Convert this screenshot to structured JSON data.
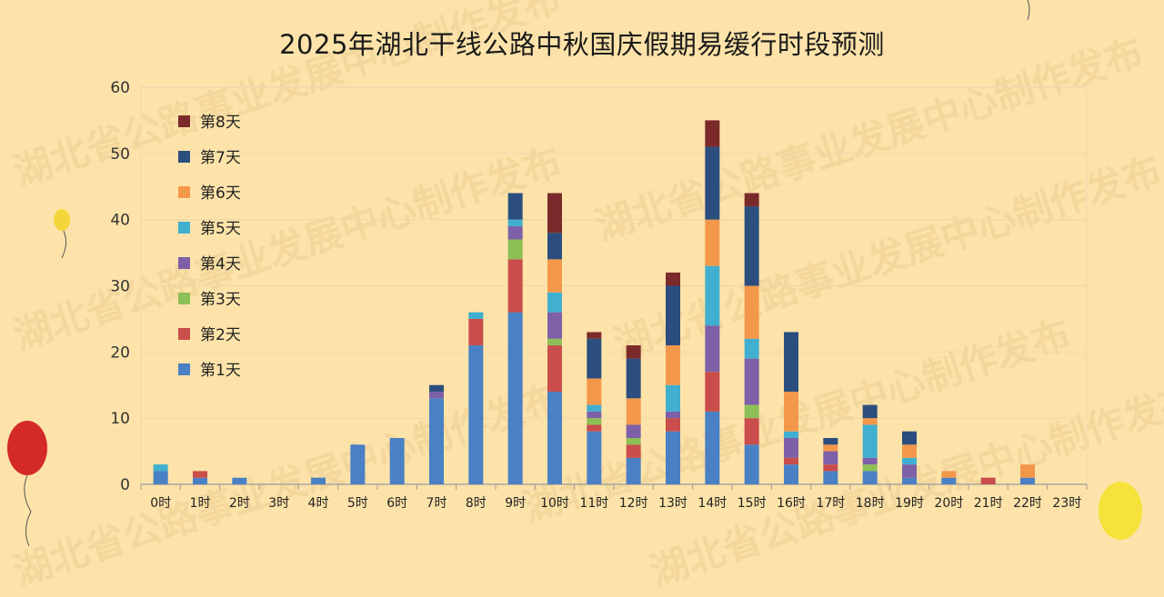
{
  "chart_data": {
    "type": "bar",
    "stacked": true,
    "title": "2025年湖北干线公路中秋国庆假期易缓行时段预测",
    "xlabel": "",
    "ylabel": "",
    "ylim": [
      0,
      60
    ],
    "yticks": [
      0,
      10,
      20,
      30,
      40,
      50,
      60
    ],
    "grid": true,
    "legend_position": "top-left",
    "categories": [
      "0时",
      "1时",
      "2时",
      "3时",
      "4时",
      "5时",
      "6时",
      "7时",
      "8时",
      "9时",
      "10时",
      "11时",
      "12时",
      "13时",
      "14时",
      "15时",
      "16时",
      "17时",
      "18时",
      "19时",
      "20时",
      "21时",
      "22时",
      "23时"
    ],
    "series": [
      {
        "name": "第1天",
        "color": "#4a80c4",
        "values": [
          2,
          1,
          1,
          0,
          1,
          6,
          7,
          13,
          21,
          26,
          14,
          8,
          4,
          8,
          11,
          6,
          3,
          2,
          2,
          1,
          1,
          0,
          1,
          0
        ]
      },
      {
        "name": "第2天",
        "color": "#c94d4b",
        "values": [
          0,
          1,
          0,
          0,
          0,
          0,
          0,
          0,
          4,
          8,
          7,
          1,
          2,
          2,
          6,
          4,
          1,
          1,
          0,
          0,
          0,
          1,
          0,
          0
        ]
      },
      {
        "name": "第3天",
        "color": "#8cbf56",
        "values": [
          0,
          0,
          0,
          0,
          0,
          0,
          0,
          0,
          0,
          3,
          1,
          1,
          1,
          0,
          0,
          2,
          0,
          0,
          1,
          0,
          0,
          0,
          0,
          0
        ]
      },
      {
        "name": "第4天",
        "color": "#7d60a8",
        "values": [
          0,
          0,
          0,
          0,
          0,
          0,
          0,
          1,
          0,
          2,
          4,
          1,
          2,
          1,
          7,
          7,
          3,
          2,
          1,
          2,
          0,
          0,
          0,
          0
        ]
      },
      {
        "name": "第5天",
        "color": "#40afd0",
        "values": [
          1,
          0,
          0,
          0,
          0,
          0,
          0,
          0,
          1,
          1,
          3,
          1,
          0,
          4,
          9,
          3,
          1,
          0,
          5,
          1,
          0,
          0,
          0,
          0
        ]
      },
      {
        "name": "第6天",
        "color": "#f3984a",
        "values": [
          0,
          0,
          0,
          0,
          0,
          0,
          0,
          0,
          0,
          0,
          5,
          4,
          4,
          6,
          7,
          8,
          6,
          1,
          1,
          2,
          1,
          0,
          2,
          0
        ]
      },
      {
        "name": "第7天",
        "color": "#2b4e7e",
        "values": [
          0,
          0,
          0,
          0,
          0,
          0,
          0,
          1,
          0,
          4,
          4,
          6,
          6,
          9,
          11,
          12,
          9,
          1,
          2,
          2,
          0,
          0,
          0,
          0
        ]
      },
      {
        "name": "第8天",
        "color": "#7b2a2b",
        "values": [
          0,
          0,
          0,
          0,
          0,
          0,
          0,
          0,
          0,
          0,
          6,
          1,
          2,
          2,
          4,
          2,
          0,
          0,
          0,
          0,
          0,
          0,
          0,
          0
        ]
      }
    ]
  },
  "watermark": "湖北省公路事业发展中心制作发布",
  "colors": {
    "background": "#fde3a9",
    "grid": "#ecd7ad",
    "axis": "#9a9a9a"
  }
}
